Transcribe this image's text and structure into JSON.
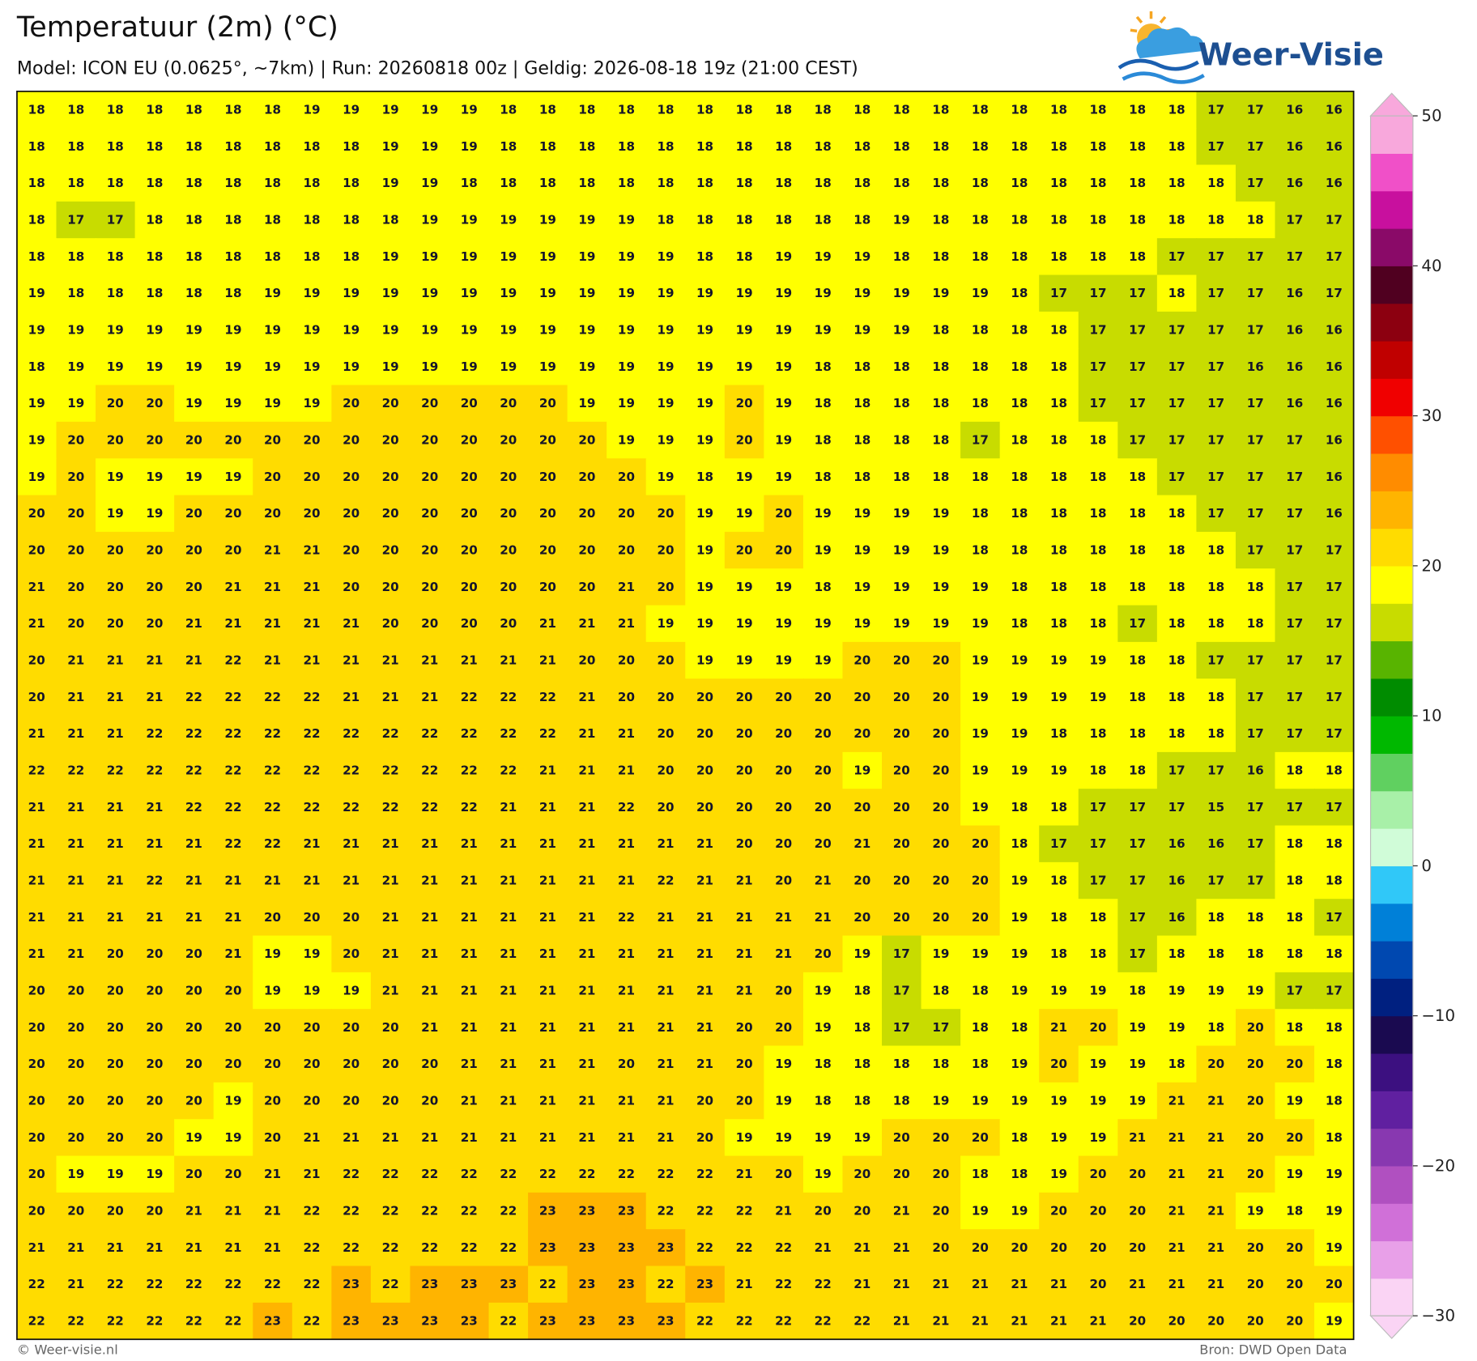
{
  "map": {
    "title": "Temperatuur (2m) (°C)",
    "subtitle": "Model: ICON EU (0.0625°, ~7km)  |  Run: 20260818 00z  |  Geldig: 2026-08-18 19z (21:00 CEST)",
    "logo": "Weer-Visie",
    "footer_left": "© Weer-visie.nl",
    "footer_right": "Bron: DWD Open Data",
    "grid": {
      "rows": [
        [
          18,
          18,
          18,
          18,
          18,
          18,
          18,
          19,
          19,
          19,
          19,
          19,
          18,
          18,
          18,
          18,
          18,
          18,
          18,
          18,
          18,
          18,
          18,
          18,
          18,
          18,
          18,
          18,
          18,
          18,
          17,
          17,
          16,
          16
        ],
        [
          18,
          18,
          18,
          18,
          18,
          18,
          18,
          18,
          18,
          19,
          19,
          19,
          18,
          18,
          18,
          18,
          18,
          18,
          18,
          18,
          18,
          18,
          18,
          18,
          18,
          18,
          18,
          18,
          18,
          18,
          17,
          17,
          16,
          16
        ],
        [
          18,
          18,
          18,
          18,
          18,
          18,
          18,
          18,
          18,
          19,
          19,
          18,
          18,
          18,
          18,
          18,
          18,
          18,
          18,
          18,
          18,
          18,
          18,
          18,
          18,
          18,
          18,
          18,
          18,
          18,
          18,
          17,
          16,
          16
        ],
        [
          18,
          17,
          17,
          18,
          18,
          18,
          18,
          18,
          18,
          18,
          19,
          19,
          19,
          19,
          19,
          19,
          18,
          18,
          18,
          18,
          18,
          18,
          19,
          18,
          18,
          18,
          18,
          18,
          18,
          18,
          18,
          18,
          17,
          17
        ],
        [
          18,
          18,
          18,
          18,
          18,
          18,
          18,
          18,
          18,
          19,
          19,
          19,
          19,
          19,
          19,
          19,
          19,
          18,
          18,
          19,
          19,
          19,
          18,
          18,
          18,
          18,
          18,
          18,
          18,
          17,
          17,
          17,
          17,
          17
        ],
        [
          19,
          18,
          18,
          18,
          18,
          18,
          19,
          19,
          19,
          19,
          19,
          19,
          19,
          19,
          19,
          19,
          19,
          19,
          19,
          19,
          19,
          19,
          19,
          19,
          19,
          18,
          17,
          17,
          17,
          18,
          17,
          17,
          16,
          17
        ],
        [
          19,
          19,
          19,
          19,
          19,
          19,
          19,
          19,
          19,
          19,
          19,
          19,
          19,
          19,
          19,
          19,
          19,
          19,
          19,
          19,
          19,
          19,
          19,
          18,
          18,
          18,
          18,
          17,
          17,
          17,
          17,
          17,
          16,
          16
        ],
        [
          18,
          19,
          19,
          19,
          19,
          19,
          19,
          19,
          19,
          19,
          19,
          19,
          19,
          19,
          19,
          19,
          19,
          19,
          19,
          19,
          18,
          18,
          18,
          18,
          18,
          18,
          18,
          17,
          17,
          17,
          17,
          16,
          16,
          16
        ],
        [
          19,
          19,
          20,
          20,
          19,
          19,
          19,
          19,
          20,
          20,
          20,
          20,
          20,
          20,
          19,
          19,
          19,
          19,
          20,
          19,
          18,
          18,
          18,
          18,
          18,
          18,
          18,
          17,
          17,
          17,
          17,
          17,
          16,
          16
        ],
        [
          19,
          20,
          20,
          20,
          20,
          20,
          20,
          20,
          20,
          20,
          20,
          20,
          20,
          20,
          20,
          19,
          19,
          19,
          20,
          19,
          18,
          18,
          18,
          18,
          17,
          18,
          18,
          18,
          17,
          17,
          17,
          17,
          17,
          16
        ],
        [
          19,
          20,
          19,
          19,
          19,
          19,
          20,
          20,
          20,
          20,
          20,
          20,
          20,
          20,
          20,
          20,
          19,
          18,
          19,
          19,
          18,
          18,
          18,
          18,
          18,
          18,
          18,
          18,
          18,
          17,
          17,
          17,
          17,
          16
        ],
        [
          20,
          20,
          19,
          19,
          20,
          20,
          20,
          20,
          20,
          20,
          20,
          20,
          20,
          20,
          20,
          20,
          20,
          19,
          19,
          20,
          19,
          19,
          19,
          19,
          18,
          18,
          18,
          18,
          18,
          18,
          17,
          17,
          17,
          16
        ],
        [
          20,
          20,
          20,
          20,
          20,
          20,
          21,
          21,
          20,
          20,
          20,
          20,
          20,
          20,
          20,
          20,
          20,
          19,
          20,
          20,
          19,
          19,
          19,
          19,
          18,
          18,
          18,
          18,
          18,
          18,
          18,
          17,
          17,
          17
        ],
        [
          21,
          20,
          20,
          20,
          20,
          21,
          21,
          21,
          20,
          20,
          20,
          20,
          20,
          20,
          20,
          21,
          20,
          19,
          19,
          19,
          18,
          19,
          19,
          19,
          19,
          18,
          18,
          18,
          18,
          18,
          18,
          18,
          17,
          17
        ],
        [
          21,
          20,
          20,
          20,
          21,
          21,
          21,
          21,
          21,
          20,
          20,
          20,
          20,
          21,
          21,
          21,
          19,
          19,
          19,
          19,
          19,
          19,
          19,
          19,
          19,
          18,
          18,
          18,
          17,
          18,
          18,
          18,
          17,
          17
        ],
        [
          20,
          21,
          21,
          21,
          21,
          22,
          21,
          21,
          21,
          21,
          21,
          21,
          21,
          21,
          20,
          20,
          20,
          19,
          19,
          19,
          19,
          20,
          20,
          20,
          19,
          19,
          19,
          19,
          18,
          18,
          17,
          17,
          17,
          17
        ],
        [
          20,
          21,
          21,
          21,
          22,
          22,
          22,
          22,
          21,
          21,
          21,
          22,
          22,
          22,
          21,
          20,
          20,
          20,
          20,
          20,
          20,
          20,
          20,
          20,
          19,
          19,
          19,
          19,
          18,
          18,
          18,
          17,
          17,
          17
        ],
        [
          21,
          21,
          21,
          22,
          22,
          22,
          22,
          22,
          22,
          22,
          22,
          22,
          22,
          22,
          21,
          21,
          20,
          20,
          20,
          20,
          20,
          20,
          20,
          20,
          19,
          19,
          18,
          18,
          18,
          18,
          18,
          17,
          17,
          17
        ],
        [
          22,
          22,
          22,
          22,
          22,
          22,
          22,
          22,
          22,
          22,
          22,
          22,
          22,
          21,
          21,
          21,
          20,
          20,
          20,
          20,
          20,
          19,
          20,
          20,
          19,
          19,
          19,
          18,
          18,
          17,
          17,
          16,
          18,
          18
        ],
        [
          21,
          21,
          21,
          21,
          22,
          22,
          22,
          22,
          22,
          22,
          22,
          22,
          21,
          21,
          21,
          22,
          20,
          20,
          20,
          20,
          20,
          20,
          20,
          20,
          19,
          18,
          18,
          17,
          17,
          17,
          15,
          17,
          17,
          17
        ],
        [
          21,
          21,
          21,
          21,
          21,
          22,
          22,
          21,
          21,
          21,
          21,
          21,
          21,
          21,
          21,
          21,
          21,
          21,
          20,
          20,
          20,
          21,
          20,
          20,
          20,
          18,
          17,
          17,
          17,
          16,
          16,
          17,
          18,
          18
        ],
        [
          21,
          21,
          21,
          22,
          21,
          21,
          21,
          21,
          21,
          21,
          21,
          21,
          21,
          21,
          21,
          21,
          22,
          21,
          21,
          20,
          21,
          20,
          20,
          20,
          20,
          19,
          18,
          17,
          17,
          16,
          17,
          17,
          18,
          18
        ],
        [
          21,
          21,
          21,
          21,
          21,
          21,
          20,
          20,
          20,
          21,
          21,
          21,
          21,
          21,
          21,
          22,
          21,
          21,
          21,
          21,
          21,
          20,
          20,
          20,
          20,
          19,
          18,
          18,
          17,
          16,
          18,
          18,
          18,
          17
        ],
        [
          21,
          21,
          20,
          20,
          20,
          21,
          19,
          19,
          20,
          21,
          21,
          21,
          21,
          21,
          21,
          21,
          21,
          21,
          21,
          21,
          20,
          19,
          17,
          19,
          19,
          19,
          18,
          18,
          17,
          18,
          18,
          18,
          18,
          18
        ],
        [
          20,
          20,
          20,
          20,
          20,
          20,
          19,
          19,
          19,
          21,
          21,
          21,
          21,
          21,
          21,
          21,
          21,
          21,
          21,
          20,
          19,
          18,
          17,
          18,
          18,
          19,
          19,
          19,
          18,
          19,
          19,
          19,
          17,
          17
        ],
        [
          20,
          20,
          20,
          20,
          20,
          20,
          20,
          20,
          20,
          20,
          21,
          21,
          21,
          21,
          21,
          21,
          21,
          21,
          20,
          20,
          19,
          18,
          17,
          17,
          18,
          18,
          21,
          20,
          19,
          19,
          18,
          20,
          18,
          18
        ],
        [
          20,
          20,
          20,
          20,
          20,
          20,
          20,
          20,
          20,
          20,
          20,
          21,
          21,
          21,
          21,
          20,
          21,
          21,
          20,
          19,
          18,
          18,
          18,
          18,
          18,
          19,
          20,
          19,
          19,
          18,
          20,
          20,
          20,
          18
        ],
        [
          20,
          20,
          20,
          20,
          20,
          19,
          20,
          20,
          20,
          20,
          20,
          21,
          21,
          21,
          21,
          21,
          21,
          20,
          20,
          19,
          18,
          18,
          18,
          19,
          19,
          19,
          19,
          19,
          19,
          21,
          21,
          20,
          19,
          18
        ],
        [
          20,
          20,
          20,
          20,
          19,
          19,
          20,
          21,
          21,
          21,
          21,
          21,
          21,
          21,
          21,
          21,
          21,
          20,
          19,
          19,
          19,
          19,
          20,
          20,
          20,
          18,
          19,
          19,
          21,
          21,
          21,
          20,
          20,
          18
        ],
        [
          20,
          19,
          19,
          19,
          20,
          20,
          21,
          21,
          22,
          22,
          22,
          22,
          22,
          22,
          22,
          22,
          22,
          22,
          21,
          20,
          19,
          20,
          20,
          20,
          18,
          18,
          19,
          20,
          20,
          21,
          21,
          20,
          19,
          19
        ],
        [
          20,
          20,
          20,
          20,
          21,
          21,
          21,
          22,
          22,
          22,
          22,
          22,
          22,
          23,
          23,
          23,
          22,
          22,
          22,
          21,
          20,
          20,
          21,
          20,
          19,
          19,
          20,
          20,
          20,
          21,
          21,
          19,
          18,
          19
        ],
        [
          21,
          21,
          21,
          21,
          21,
          21,
          21,
          22,
          22,
          22,
          22,
          22,
          22,
          23,
          23,
          23,
          23,
          22,
          22,
          22,
          21,
          21,
          21,
          20,
          20,
          20,
          20,
          20,
          20,
          21,
          21,
          20,
          20,
          19
        ],
        [
          22,
          21,
          22,
          22,
          22,
          22,
          22,
          22,
          23,
          22,
          23,
          23,
          23,
          22,
          23,
          23,
          22,
          23,
          21,
          22,
          22,
          21,
          21,
          21,
          21,
          21,
          21,
          20,
          21,
          21,
          21,
          20,
          20,
          20
        ],
        [
          22,
          22,
          22,
          22,
          22,
          22,
          23,
          22,
          23,
          23,
          23,
          23,
          22,
          23,
          23,
          23,
          23,
          22,
          22,
          22,
          22,
          22,
          21,
          21,
          21,
          21,
          21,
          21,
          20,
          20,
          20,
          20,
          20,
          19
        ]
      ]
    },
    "colorbar": {
      "lim": [
        -30,
        50
      ],
      "step": 2.5,
      "colors": [
        "#fad4f4",
        "#e8a0e8",
        "#d070d8",
        "#b050c0",
        "#8838b0",
        "#6020a0",
        "#3c1080",
        "#1a0a50",
        "#002080",
        "#0048b0",
        "#0080d8",
        "#30c8f8",
        "#d0fcd8",
        "#a8f0a8",
        "#60d060",
        "#00b800",
        "#008c00",
        "#58b400",
        "#c8dc00",
        "#ffff00",
        "#ffdc00",
        "#ffb400",
        "#ff8c00",
        "#ff5000",
        "#f00000",
        "#c00000",
        "#8c0010",
        "#500020",
        "#8a0a68",
        "#c8109e",
        "#f050c8",
        "#f8a8dc"
      ],
      "ticks": [
        50,
        40,
        30,
        20,
        10,
        0,
        {
          "value": -10,
          "label": "−10"
        },
        {
          "value": -20,
          "label": "−20"
        },
        {
          "value": -30,
          "label": "−30"
        }
      ]
    }
  }
}
